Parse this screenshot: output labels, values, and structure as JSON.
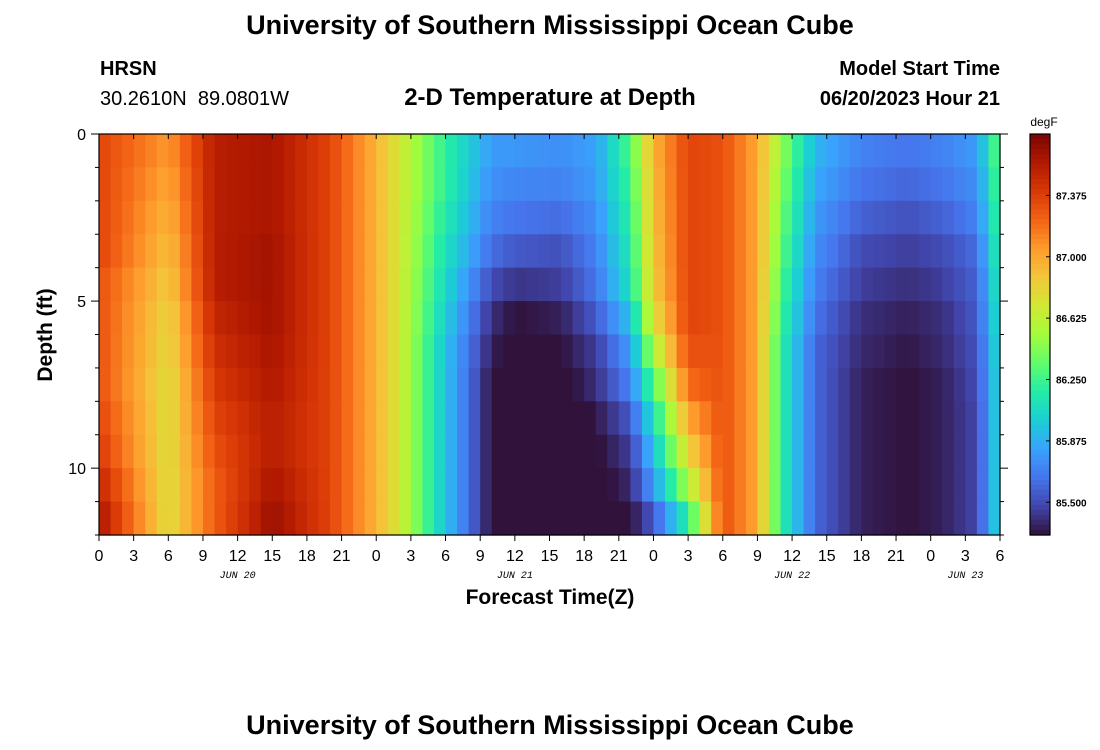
{
  "header": {
    "title": "University of Southern Mississippi Ocean Cube",
    "station_name": "HRSN",
    "station_coords": "30.2610N  89.0801W",
    "model_start_label": "Model Start Time",
    "model_start_value": "06/20/2023 Hour 21",
    "footer_title": "University of Southern Mississippi Ocean Cube"
  },
  "chart_data": {
    "type": "heatmap",
    "title": "2-D Temperature at Depth",
    "xlabel": "Forecast Time(Z)",
    "ylabel": "Depth (ft)",
    "x_tick_labels": [
      "0",
      "3",
      "6",
      "9",
      "12",
      "15",
      "18",
      "21",
      "0",
      "3",
      "6",
      "9",
      "12",
      "15",
      "18",
      "21",
      "0",
      "3",
      "6",
      "9",
      "12",
      "15",
      "18",
      "21",
      "0",
      "3",
      "6"
    ],
    "x_day_labels": [
      "JUN 20",
      "JUN 21",
      "JUN 22",
      "JUN 23"
    ],
    "x_range_hours": [
      0,
      78
    ],
    "y_tick_labels": [
      "0",
      "5",
      "10"
    ],
    "y_range_ft": [
      0,
      12
    ],
    "y_reversed": true,
    "colorbar": {
      "unit": "degF",
      "tick_labels": [
        "87.375",
        "87.000",
        "86.625",
        "86.250",
        "85.875",
        "85.500"
      ],
      "tick_values": [
        87.375,
        87.0,
        86.625,
        86.25,
        85.875,
        85.5
      ],
      "range": [
        85.3,
        87.75
      ],
      "colors": [
        "#30123b",
        "#4145ab",
        "#4675ed",
        "#39a2fc",
        "#1bcfd4",
        "#24eca6",
        "#61fc6c",
        "#a4fc3b",
        "#d1e834",
        "#f3c63a",
        "#fe9b2d",
        "#f36315",
        "#d93806",
        "#b11901",
        "#7a0403"
      ]
    },
    "depth_rows_ft": [
      0.5,
      1.5,
      2.5,
      3.5,
      4.5,
      5.5,
      6.5,
      7.5,
      8.5,
      9.5,
      10.5,
      11.5
    ],
    "time_hours": [
      0,
      6,
      10,
      15,
      20,
      24,
      26,
      30,
      34,
      36,
      40,
      43,
      46,
      48,
      51,
      54,
      57,
      59,
      62,
      66,
      70,
      73,
      76,
      78
    ],
    "values_degF": [
      [
        87.35,
        87.05,
        87.55,
        87.6,
        87.35,
        86.95,
        86.7,
        86.2,
        85.8,
        85.78,
        85.75,
        85.82,
        86.3,
        86.95,
        87.35,
        87.3,
        87.0,
        86.5,
        85.9,
        85.7,
        85.65,
        85.7,
        85.8,
        86.4
      ],
      [
        87.35,
        87.0,
        87.55,
        87.6,
        87.35,
        86.95,
        86.7,
        86.2,
        85.75,
        85.72,
        85.7,
        85.8,
        86.25,
        86.92,
        87.35,
        87.3,
        87.0,
        86.45,
        85.85,
        85.65,
        85.6,
        85.65,
        85.75,
        86.35
      ],
      [
        87.35,
        86.95,
        87.55,
        87.6,
        87.35,
        86.95,
        86.7,
        86.15,
        85.7,
        85.65,
        85.62,
        85.75,
        86.2,
        86.9,
        87.35,
        87.3,
        87.0,
        86.4,
        85.8,
        85.58,
        85.52,
        85.58,
        85.7,
        86.3
      ],
      [
        87.35,
        86.9,
        87.55,
        87.62,
        87.35,
        86.95,
        86.7,
        86.1,
        85.62,
        85.55,
        85.52,
        85.7,
        86.15,
        86.88,
        87.35,
        87.3,
        87.0,
        86.35,
        85.75,
        85.5,
        85.45,
        85.5,
        85.62,
        86.25
      ],
      [
        87.3,
        86.85,
        87.55,
        87.62,
        87.35,
        86.95,
        86.7,
        86.05,
        85.5,
        85.42,
        85.45,
        85.65,
        86.1,
        86.85,
        87.35,
        87.3,
        87.0,
        86.3,
        85.7,
        85.45,
        85.4,
        85.45,
        85.58,
        86.2
      ],
      [
        87.3,
        86.8,
        87.5,
        87.62,
        87.35,
        86.95,
        86.7,
        86.0,
        85.4,
        85.3,
        85.35,
        85.55,
        85.95,
        86.75,
        87.35,
        87.3,
        87.0,
        86.25,
        85.65,
        85.4,
        85.35,
        85.4,
        85.55,
        86.15
      ],
      [
        87.3,
        86.78,
        87.45,
        87.6,
        87.35,
        86.95,
        86.7,
        85.95,
        85.35,
        85.25,
        85.3,
        85.45,
        85.8,
        86.55,
        87.3,
        87.3,
        87.0,
        86.2,
        85.6,
        85.38,
        85.32,
        85.38,
        85.52,
        86.12
      ],
      [
        87.3,
        86.75,
        87.4,
        87.58,
        87.35,
        86.95,
        86.7,
        85.95,
        85.3,
        85.22,
        85.25,
        85.4,
        85.7,
        86.3,
        87.2,
        87.3,
        87.0,
        86.2,
        85.6,
        85.35,
        85.3,
        85.35,
        85.5,
        86.1
      ],
      [
        87.35,
        86.75,
        87.35,
        87.55,
        87.35,
        86.95,
        86.7,
        85.95,
        85.3,
        85.2,
        85.22,
        85.32,
        85.55,
        86.1,
        87.0,
        87.3,
        87.0,
        86.2,
        85.6,
        85.35,
        85.3,
        85.35,
        85.48,
        86.1
      ],
      [
        87.4,
        86.75,
        87.3,
        87.55,
        87.35,
        86.95,
        86.7,
        85.95,
        85.3,
        85.2,
        85.2,
        85.28,
        85.45,
        85.95,
        86.8,
        87.3,
        87.0,
        86.2,
        85.6,
        85.35,
        85.3,
        85.35,
        85.48,
        86.1
      ],
      [
        87.5,
        86.75,
        87.25,
        87.6,
        87.35,
        86.95,
        86.7,
        85.95,
        85.3,
        85.2,
        85.2,
        85.25,
        85.38,
        85.8,
        86.55,
        87.3,
        87.0,
        86.2,
        85.6,
        85.35,
        85.3,
        85.35,
        85.48,
        86.1
      ],
      [
        87.6,
        86.75,
        87.25,
        87.65,
        87.35,
        86.95,
        86.7,
        85.95,
        85.3,
        85.2,
        85.2,
        85.22,
        85.3,
        85.55,
        86.2,
        87.3,
        87.0,
        86.2,
        85.6,
        85.35,
        85.3,
        85.35,
        85.48,
        86.1
      ]
    ]
  }
}
